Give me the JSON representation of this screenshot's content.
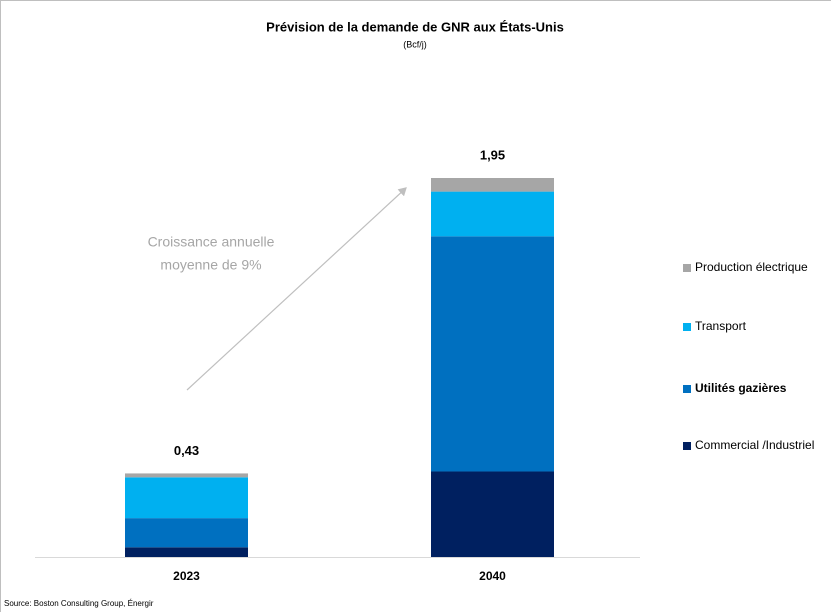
{
  "chart_data": {
    "type": "stacked_bar",
    "title": "Prévision de la demande de GNR aux États-Unis",
    "subtitle": "(Bcf/j)",
    "categories": [
      "2023",
      "2040"
    ],
    "series": [
      {
        "name": "Commercial /Industriel",
        "color": "#002060",
        "values": [
          0.05,
          0.44
        ]
      },
      {
        "name": "Utilités gazières",
        "color": "#0070c0",
        "values": [
          0.15,
          1.21
        ]
      },
      {
        "name": "Transport",
        "color": "#00b0f0",
        "values": [
          0.21,
          0.23
        ]
      },
      {
        "name": "Production électrique",
        "color": "#a6a6a6",
        "values": [
          0.02,
          0.07
        ]
      }
    ],
    "totals": [
      0.43,
      1.95
    ],
    "total_labels": [
      "0,43",
      "1,95"
    ],
    "annotation": [
      "Croissance annuelle",
      "moyenne de 9%"
    ],
    "source": "Source: Boston Consulting Group, Énergir"
  }
}
